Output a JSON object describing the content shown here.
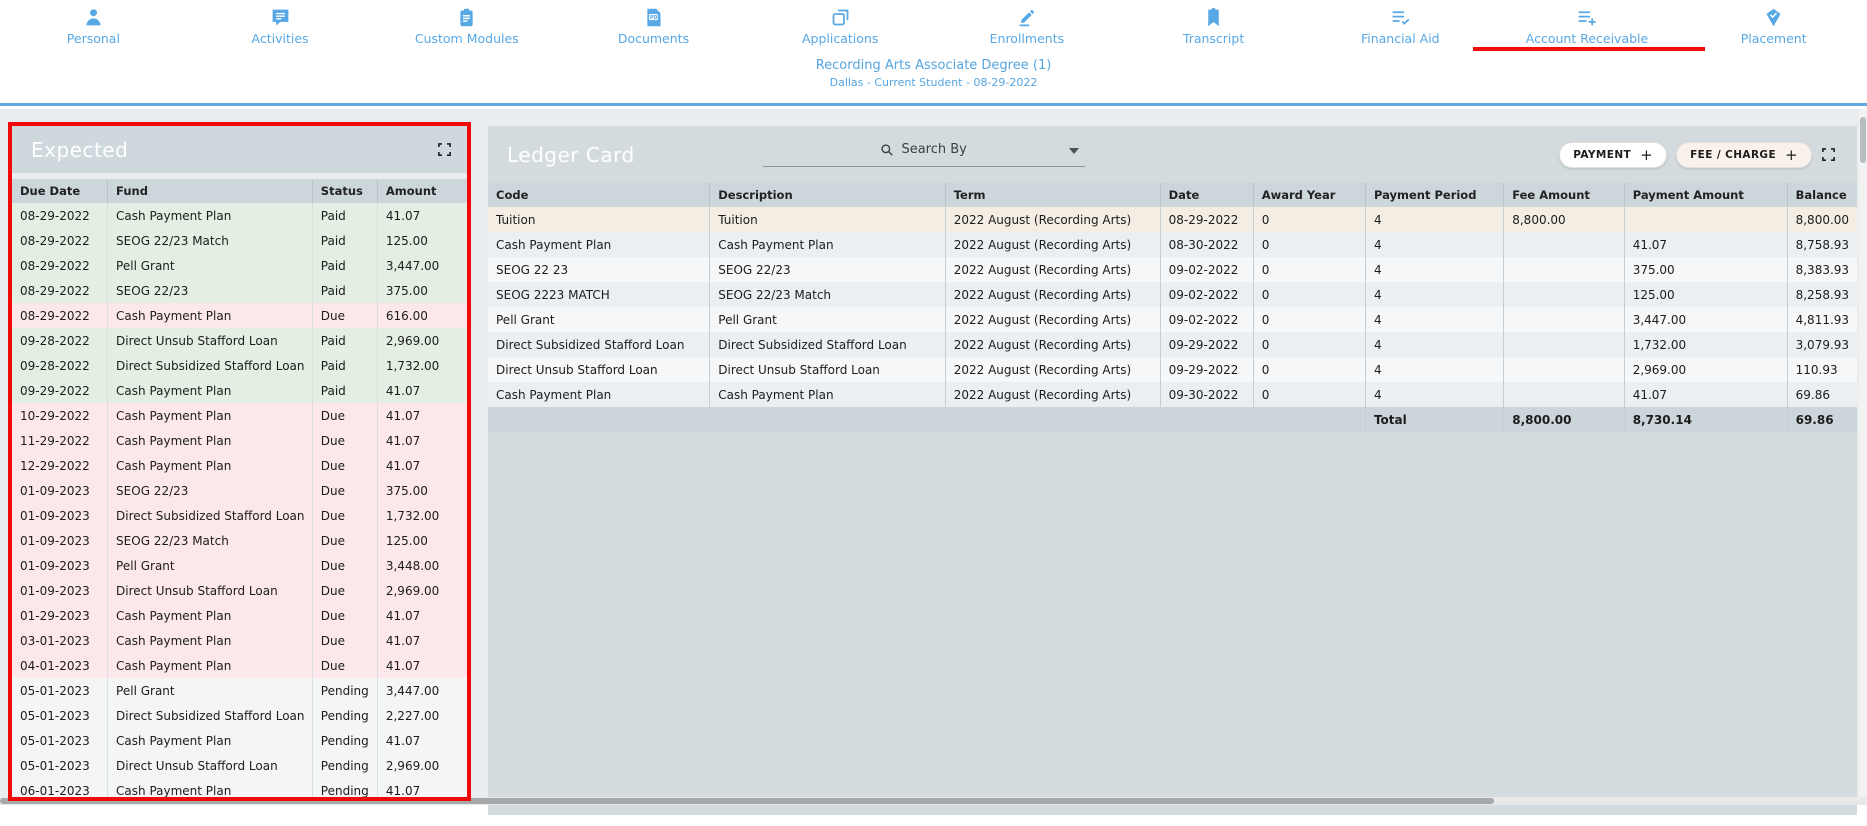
{
  "nav": {
    "items": [
      {
        "label": "Personal",
        "icon": "person-icon"
      },
      {
        "label": "Activities",
        "icon": "activities-icon"
      },
      {
        "label": "Custom Modules",
        "icon": "custom-modules-icon"
      },
      {
        "label": "Documents",
        "icon": "documents-icon"
      },
      {
        "label": "Applications",
        "icon": "applications-icon"
      },
      {
        "label": "Enrollments",
        "icon": "enrollments-icon"
      },
      {
        "label": "Transcript",
        "icon": "transcript-icon"
      },
      {
        "label": "Financial Aid",
        "icon": "financial-aid-icon"
      },
      {
        "label": "Account Receivable",
        "icon": "account-receivable-icon",
        "active": true
      },
      {
        "label": "Placement",
        "icon": "placement-icon"
      }
    ]
  },
  "header": {
    "program_title": "Recording Arts Associate Degree (1)",
    "program_subtitle": "Dallas - Current Student - 08-29-2022"
  },
  "expected_panel": {
    "title": "Expected",
    "columns": [
      "Due Date",
      "Fund",
      "Status",
      "Amount"
    ],
    "rows": [
      {
        "due_date": "08-29-2022",
        "fund": "Cash Payment Plan",
        "status": "Paid",
        "amount": "41.07",
        "tone": "paid"
      },
      {
        "due_date": "08-29-2022",
        "fund": "SEOG 22/23 Match",
        "status": "Paid",
        "amount": "125.00",
        "tone": "paid"
      },
      {
        "due_date": "08-29-2022",
        "fund": "Pell Grant",
        "status": "Paid",
        "amount": "3,447.00",
        "tone": "paid"
      },
      {
        "due_date": "08-29-2022",
        "fund": "SEOG 22/23",
        "status": "Paid",
        "amount": "375.00",
        "tone": "paid"
      },
      {
        "due_date": "08-29-2022",
        "fund": "Cash Payment Plan",
        "status": "Due",
        "amount": "616.00",
        "tone": "due"
      },
      {
        "due_date": "09-28-2022",
        "fund": "Direct Unsub Stafford Loan",
        "status": "Paid",
        "amount": "2,969.00",
        "tone": "paid"
      },
      {
        "due_date": "09-28-2022",
        "fund": "Direct Subsidized Stafford Loan",
        "status": "Paid",
        "amount": "1,732.00",
        "tone": "paid"
      },
      {
        "due_date": "09-29-2022",
        "fund": "Cash Payment Plan",
        "status": "Paid",
        "amount": "41.07",
        "tone": "paid"
      },
      {
        "due_date": "10-29-2022",
        "fund": "Cash Payment Plan",
        "status": "Due",
        "amount": "41.07",
        "tone": "due"
      },
      {
        "due_date": "11-29-2022",
        "fund": "Cash Payment Plan",
        "status": "Due",
        "amount": "41.07",
        "tone": "due"
      },
      {
        "due_date": "12-29-2022",
        "fund": "Cash Payment Plan",
        "status": "Due",
        "amount": "41.07",
        "tone": "due"
      },
      {
        "due_date": "01-09-2023",
        "fund": "SEOG 22/23",
        "status": "Due",
        "amount": "375.00",
        "tone": "due"
      },
      {
        "due_date": "01-09-2023",
        "fund": "Direct Subsidized Stafford Loan",
        "status": "Due",
        "amount": "1,732.00",
        "tone": "due"
      },
      {
        "due_date": "01-09-2023",
        "fund": "SEOG 22/23 Match",
        "status": "Due",
        "amount": "125.00",
        "tone": "due"
      },
      {
        "due_date": "01-09-2023",
        "fund": "Pell Grant",
        "status": "Due",
        "amount": "3,448.00",
        "tone": "due"
      },
      {
        "due_date": "01-09-2023",
        "fund": "Direct Unsub Stafford Loan",
        "status": "Due",
        "amount": "2,969.00",
        "tone": "due"
      },
      {
        "due_date": "01-29-2023",
        "fund": "Cash Payment Plan",
        "status": "Due",
        "amount": "41.07",
        "tone": "due"
      },
      {
        "due_date": "03-01-2023",
        "fund": "Cash Payment Plan",
        "status": "Due",
        "amount": "41.07",
        "tone": "due"
      },
      {
        "due_date": "04-01-2023",
        "fund": "Cash Payment Plan",
        "status": "Due",
        "amount": "41.07",
        "tone": "due"
      },
      {
        "due_date": "05-01-2023",
        "fund": "Pell Grant",
        "status": "Pending",
        "amount": "3,447.00",
        "tone": "pending"
      },
      {
        "due_date": "05-01-2023",
        "fund": "Direct Subsidized Stafford Loan",
        "status": "Pending",
        "amount": "2,227.00",
        "tone": "pending"
      },
      {
        "due_date": "05-01-2023",
        "fund": "Cash Payment Plan",
        "status": "Pending",
        "amount": "41.07",
        "tone": "pending"
      },
      {
        "due_date": "05-01-2023",
        "fund": "Direct Unsub Stafford Loan",
        "status": "Pending",
        "amount": "2,969.00",
        "tone": "pending"
      },
      {
        "due_date": "06-01-2023",
        "fund": "Cash Payment Plan",
        "status": "Pending",
        "amount": "41.07",
        "tone": "pending"
      }
    ]
  },
  "ledger_panel": {
    "title": "Ledger Card",
    "search_placeholder": "Search By",
    "buttons": {
      "payment": "PAYMENT",
      "fee_charge": "FEE / CHARGE",
      "plus": "+"
    },
    "columns": [
      "Code",
      "Description",
      "Term",
      "Date",
      "Award Year",
      "Payment Period",
      "Fee Amount",
      "Payment Amount",
      "Balance"
    ],
    "rows": [
      {
        "code": "Tuition",
        "description": "Tuition",
        "term": "2022 August (Recording Arts)",
        "date": "08-29-2022",
        "award_year": "0",
        "payment_period": "4",
        "fee_amount": "8,800.00",
        "payment_amount": "",
        "balance": "8,800.00",
        "tone": "fee"
      },
      {
        "code": "Cash Payment Plan",
        "description": "Cash Payment Plan",
        "term": "2022 August (Recording Arts)",
        "date": "08-30-2022",
        "award_year": "0",
        "payment_period": "4",
        "fee_amount": "",
        "payment_amount": "41.07",
        "balance": "8,758.93",
        "tone": "payment"
      },
      {
        "code": "SEOG 22 23",
        "description": "SEOG 22/23",
        "term": "2022 August (Recording Arts)",
        "date": "09-02-2022",
        "award_year": "0",
        "payment_period": "4",
        "fee_amount": "",
        "payment_amount": "375.00",
        "balance": "8,383.93",
        "tone": "payment"
      },
      {
        "code": "SEOG 2223 MATCH",
        "description": "SEOG 22/23 Match",
        "term": "2022 August (Recording Arts)",
        "date": "09-02-2022",
        "award_year": "0",
        "payment_period": "4",
        "fee_amount": "",
        "payment_amount": "125.00",
        "balance": "8,258.93",
        "tone": "payment"
      },
      {
        "code": "Pell Grant",
        "description": "Pell Grant",
        "term": "2022 August (Recording Arts)",
        "date": "09-02-2022",
        "award_year": "0",
        "payment_period": "4",
        "fee_amount": "",
        "payment_amount": "3,447.00",
        "balance": "4,811.93",
        "tone": "payment"
      },
      {
        "code": "Direct Subsidized Stafford Loan",
        "description": "Direct Subsidized Stafford Loan",
        "term": "2022 August (Recording Arts)",
        "date": "09-29-2022",
        "award_year": "0",
        "payment_period": "4",
        "fee_amount": "",
        "payment_amount": "1,732.00",
        "balance": "3,079.93",
        "tone": "payment"
      },
      {
        "code": "Direct Unsub Stafford Loan",
        "description": "Direct Unsub Stafford Loan",
        "term": "2022 August (Recording Arts)",
        "date": "09-29-2022",
        "award_year": "0",
        "payment_period": "4",
        "fee_amount": "",
        "payment_amount": "2,969.00",
        "balance": "110.93",
        "tone": "payment"
      },
      {
        "code": "Cash Payment Plan",
        "description": "Cash Payment Plan",
        "term": "2022 August (Recording Arts)",
        "date": "09-30-2022",
        "award_year": "0",
        "payment_period": "4",
        "fee_amount": "",
        "payment_amount": "41.07",
        "balance": "69.86",
        "tone": "payment"
      }
    ],
    "total_row": {
      "label": "Total",
      "fee_amount": "8,800.00",
      "payment_amount": "8,730.14",
      "balance": "69.86"
    }
  },
  "colors": {
    "nav_blue": "#58a8e6",
    "annotation_red": "#f00a0a",
    "panel_header_bg": "#cfd8dd",
    "paid_row_green": "#e2efe2",
    "due_row_pink": "#fce8ea",
    "pending_row_gray": "#f3f5f6",
    "fee_row_beige": "#f4ede3",
    "total_row_bg": "#ccd5d9"
  }
}
